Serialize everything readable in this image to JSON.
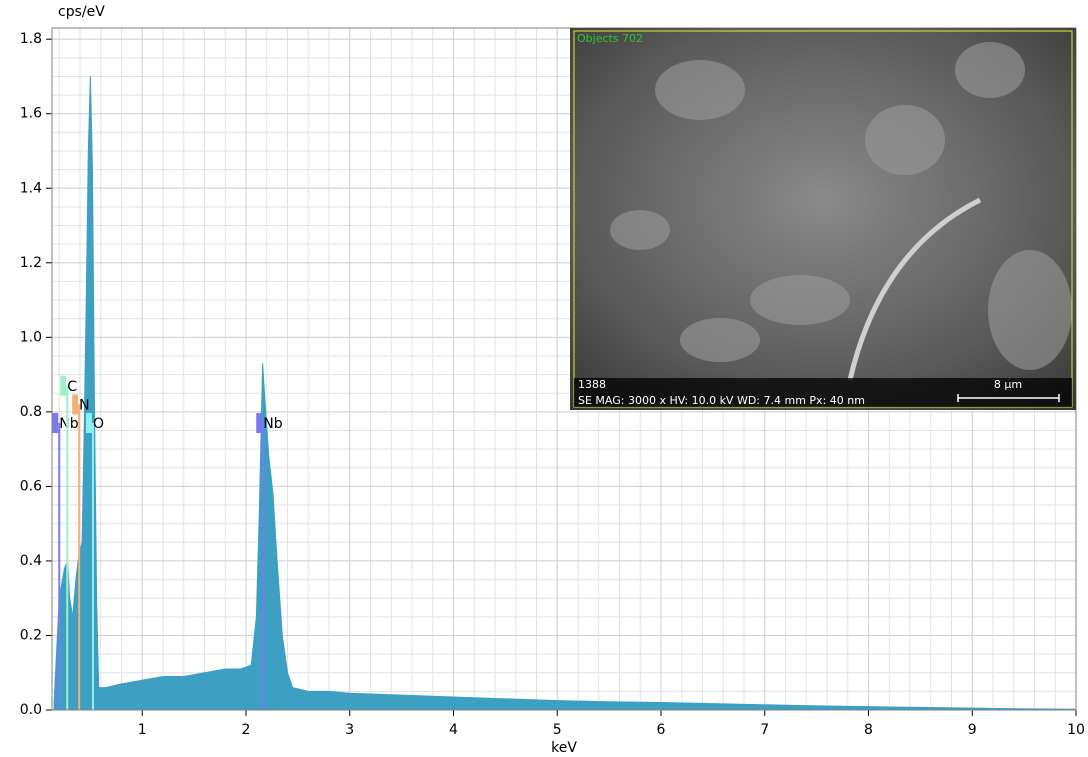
{
  "chart_data": {
    "type": "area",
    "y_label": "cps/eV",
    "x_label": "keV",
    "color": "#3d9fc2",
    "x": [
      0.15,
      0.2,
      0.25,
      0.28,
      0.3,
      0.33,
      0.36,
      0.39,
      0.42,
      0.44,
      0.46,
      0.48,
      0.5,
      0.52,
      0.54,
      0.56,
      0.58,
      0.65,
      0.8,
      1.0,
      1.2,
      1.4,
      1.6,
      1.8,
      1.95,
      2.05,
      2.1,
      2.13,
      2.16,
      2.19,
      2.22,
      2.26,
      2.3,
      2.35,
      2.4,
      2.45,
      2.6,
      2.8,
      3.0,
      3.5,
      4.0,
      4.5,
      5.0,
      5.5,
      6.0,
      6.5,
      7.0,
      7.5,
      8.0,
      8.5,
      9.0,
      9.5,
      10.0
    ],
    "values": [
      0.02,
      0.3,
      0.38,
      0.4,
      0.3,
      0.25,
      0.35,
      0.42,
      0.45,
      0.75,
      1.1,
      1.5,
      1.7,
      1.45,
      0.8,
      0.3,
      0.06,
      0.06,
      0.07,
      0.08,
      0.09,
      0.09,
      0.1,
      0.11,
      0.11,
      0.12,
      0.25,
      0.55,
      0.93,
      0.8,
      0.68,
      0.58,
      0.4,
      0.2,
      0.1,
      0.06,
      0.05,
      0.05,
      0.045,
      0.04,
      0.035,
      0.03,
      0.025,
      0.022,
      0.02,
      0.017,
      0.014,
      0.011,
      0.009,
      0.007,
      0.005,
      0.003,
      0.002
    ],
    "xlim": [
      0.13,
      10
    ],
    "ylim": [
      0,
      1.83
    ],
    "xticks": [
      1,
      2,
      3,
      4,
      5,
      6,
      7,
      8,
      9,
      10
    ],
    "yticks": [
      {
        "value": 0,
        "label": "0.0"
      },
      0.2,
      0.4,
      0.6,
      0.8,
      {
        "value": 1,
        "label": "1.0"
      },
      1.2,
      1.4,
      1.6,
      1.8
    ],
    "grid": true,
    "annotations": [
      {
        "label": "Nb",
        "x": 0.2,
        "y": 0.77,
        "color": "#7b7bef"
      },
      {
        "label": "C",
        "x": 0.277,
        "y": 0.87,
        "color": "#9ff0c8"
      },
      {
        "label": "N",
        "x": 0.392,
        "y": 0.82,
        "color": "#f2b07a"
      },
      {
        "label": "O",
        "x": 0.525,
        "y": 0.77,
        "color": "#8ff0ee"
      },
      {
        "label": "Nb",
        "x": 2.166,
        "y": 0.77,
        "color": "#7b7bef"
      }
    ]
  },
  "inset": {
    "title": "Objects 702",
    "id": "1388",
    "info": "SE  MAG: 3000 x  HV: 10.0 kV  WD: 7.4 mm  Px: 40 nm",
    "scale": "8 µm"
  }
}
